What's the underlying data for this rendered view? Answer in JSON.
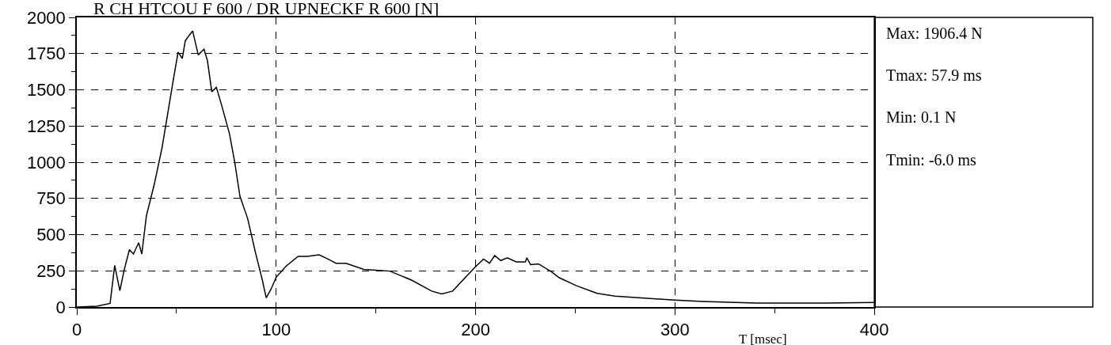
{
  "chart_data": {
    "type": "line",
    "title": "R CH HTCOU F 600 / DR UPNECKF R 600 [N]",
    "xlabel": "T [msec]",
    "x": [
      0,
      10,
      16.7,
      19,
      21.6,
      23.8,
      26.4,
      28.4,
      31,
      32.6,
      34.9,
      38.8,
      42.7,
      46,
      48.6,
      50.8,
      52.9,
      54.4,
      56.4,
      58.1,
      60.9,
      63.8,
      65.5,
      67.7,
      70,
      72.7,
      76.6,
      79.2,
      81.8,
      85.7,
      89.6,
      92.8,
      95,
      97.4,
      100,
      105,
      111,
      115.6,
      121.5,
      126,
      130,
      135,
      144,
      157,
      167.7,
      178,
      183,
      188.5,
      195,
      200,
      204,
      207,
      209.6,
      212.6,
      215.9,
      220.4,
      225,
      225.7,
      227.6,
      231.5,
      238,
      242,
      250.4,
      261,
      270,
      287.6,
      300,
      314,
      340.7,
      376,
      400
    ],
    "series": [
      {
        "color": "#000000",
        "values": [
          0,
          5,
          25,
          288,
          113,
          259,
          396,
          366,
          444,
          366,
          630,
          844,
          1097,
          1370,
          1585,
          1760,
          1717,
          1838,
          1877,
          1906,
          1741,
          1780,
          1702,
          1487,
          1517,
          1390,
          1195,
          1000,
          766,
          610,
          376,
          201,
          64,
          123,
          206,
          283,
          350,
          350,
          360,
          331,
          302,
          302,
          260,
          248,
          187,
          110,
          90,
          110,
          206,
          279,
          331,
          302,
          356,
          321,
          340,
          312,
          312,
          340,
          292,
          298,
          244,
          202,
          148,
          94,
          75,
          59,
          48,
          38,
          27,
          27,
          32
        ]
      }
    ],
    "xlim": [
      0,
      400
    ],
    "xticks": [
      0,
      {
        "value": 50,
        "label": null
      },
      100,
      {
        "value": 150,
        "label": null
      },
      200,
      {
        "value": 250,
        "label": null
      },
      300,
      {
        "value": 350,
        "label": null
      },
      400
    ],
    "ylim": [
      0,
      2000
    ],
    "yticks": [
      0,
      {
        "value": 125,
        "label": null
      },
      250,
      {
        "value": 375,
        "label": null
      },
      500,
      {
        "value": 625,
        "label": null
      },
      750,
      {
        "value": 875,
        "label": null
      },
      1000,
      {
        "value": 1125,
        "label": null
      },
      1250,
      {
        "value": 1375,
        "label": null
      },
      1500,
      {
        "value": 1625,
        "label": null
      },
      1750,
      {
        "value": 1875,
        "label": null
      },
      2000
    ],
    "grid": true,
    "line_style": "solid",
    "marker": "none",
    "annotations": [
      "Max: 1906.4 N",
      "Tmax: 57.9 ms",
      "Min: 0.1 N",
      "Tmin: -6.0 ms"
    ]
  }
}
